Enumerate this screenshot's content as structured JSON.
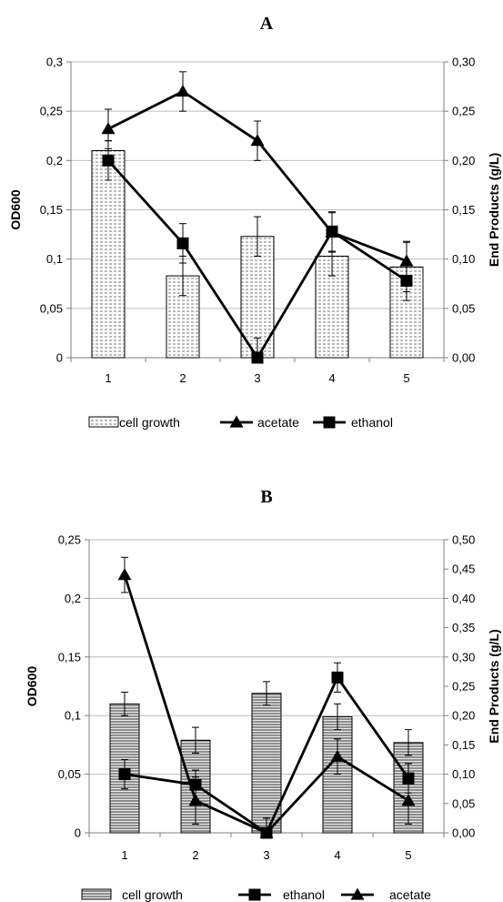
{
  "chart_data": [
    {
      "id": "A",
      "type": "bar",
      "title": "A",
      "categories": [
        "1",
        "2",
        "3",
        "4",
        "5"
      ],
      "ylabel": "OD600",
      "y2label": "End Products (g/L)",
      "ylim": [
        0,
        0.3
      ],
      "y2lim": [
        0,
        0.3
      ],
      "yticks": [
        "0",
        "0,05",
        "0,1",
        "0,15",
        "0,2",
        "0,25",
        "0,3"
      ],
      "y2ticks": [
        "0,00",
        "0,05",
        "0,10",
        "0,15",
        "0,20",
        "0,25",
        "0,30"
      ],
      "grid": true,
      "legend_position": "bottom",
      "series": [
        {
          "name": "cell growth",
          "kind": "bar",
          "pattern": "dots",
          "axis": "left",
          "values": [
            0.21,
            0.083,
            0.123,
            0.103,
            0.092
          ],
          "errors": [
            0.01,
            0.02,
            0.02,
            0.02,
            0.025
          ]
        },
        {
          "name": "acetate",
          "kind": "line",
          "marker": "triangle",
          "axis": "right",
          "values": [
            0.232,
            0.27,
            0.22,
            0.127,
            0.098
          ],
          "errors": [
            0.02,
            0.02,
            0.02,
            0.02,
            0.02
          ]
        },
        {
          "name": "ethanol",
          "kind": "line",
          "marker": "square",
          "axis": "right",
          "values": [
            0.2,
            0.116,
            0.0,
            0.128,
            0.078
          ],
          "errors": [
            0.02,
            0.02,
            0.02,
            0.02,
            0.02
          ]
        }
      ],
      "legend_order": [
        "cell growth",
        "acetate",
        "ethanol"
      ]
    },
    {
      "id": "B",
      "type": "bar",
      "title": "B",
      "categories": [
        "1",
        "2",
        "3",
        "4",
        "5"
      ],
      "ylabel": "OD600",
      "y2label": "End Products (g/L)",
      "ylim": [
        0,
        0.25
      ],
      "y2lim": [
        0,
        0.5
      ],
      "yticks": [
        "0",
        "0,05",
        "0,1",
        "0,15",
        "0,2",
        "0,25"
      ],
      "y2ticks": [
        "0,00",
        "0,05",
        "0,10",
        "0,15",
        "0,20",
        "0,25",
        "0,30",
        "0,35",
        "0,40",
        "0,45",
        "0,50"
      ],
      "grid": true,
      "legend_position": "bottom",
      "series": [
        {
          "name": "cell growth",
          "kind": "bar",
          "pattern": "lines",
          "axis": "left",
          "values": [
            0.11,
            0.079,
            0.119,
            0.099,
            0.077
          ],
          "errors": [
            0.01,
            0.011,
            0.01,
            0.011,
            0.011
          ]
        },
        {
          "name": "ethanol",
          "kind": "line",
          "marker": "square",
          "axis": "right",
          "values": [
            0.1,
            0.082,
            0.0,
            0.265,
            0.093
          ],
          "errors": [
            0.025,
            0.025,
            0.025,
            0.025,
            0.025
          ]
        },
        {
          "name": "acetate",
          "kind": "line",
          "marker": "triangle",
          "axis": "right",
          "values": [
            0.44,
            0.055,
            0.0,
            0.13,
            0.055
          ],
          "errors": [
            0.03,
            0.04,
            0.025,
            0.03,
            0.04
          ]
        }
      ],
      "legend_order": [
        "cell growth",
        "ethanol",
        "acetate"
      ]
    }
  ]
}
